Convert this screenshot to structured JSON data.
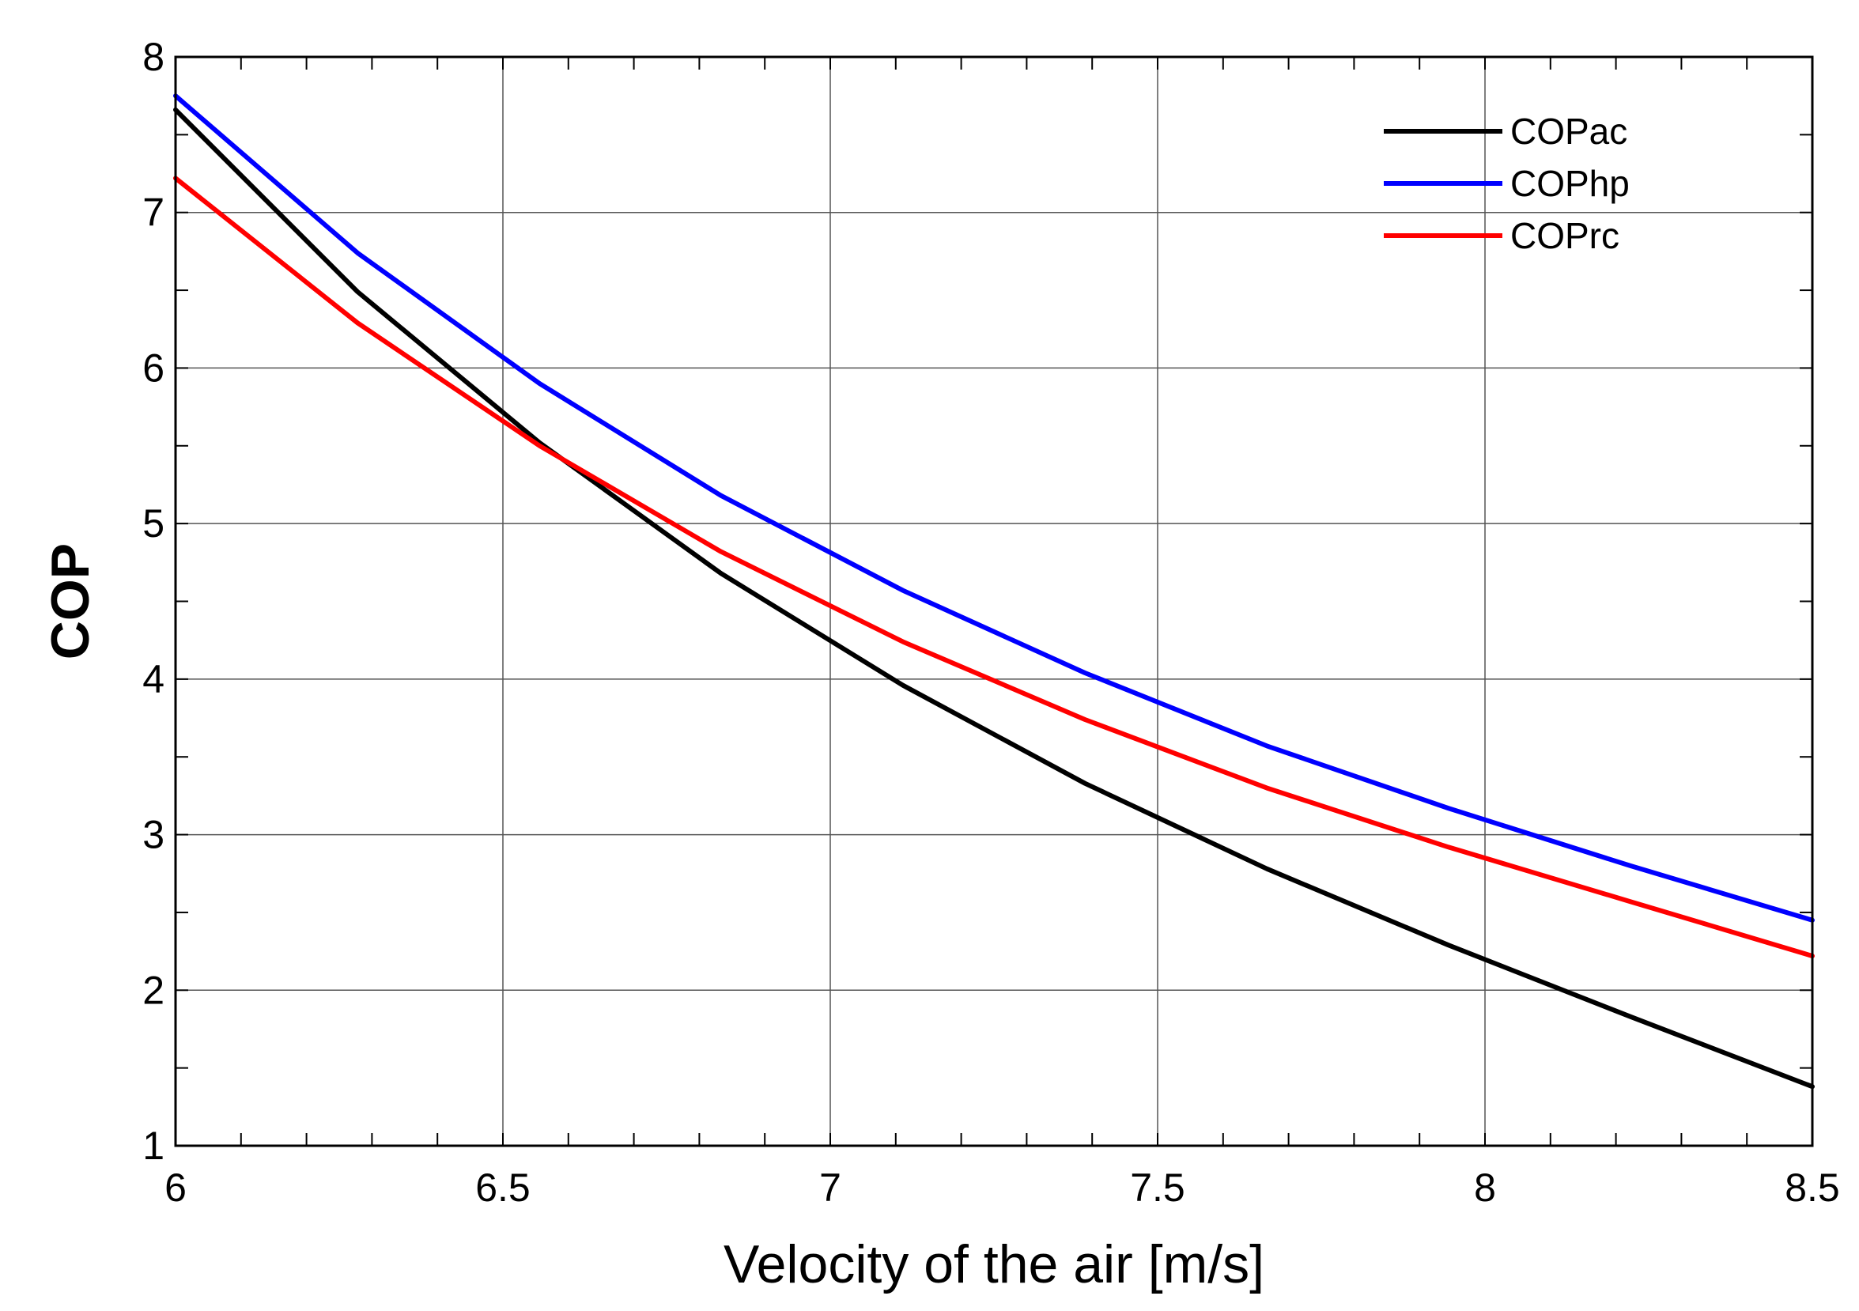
{
  "chart_data": {
    "type": "line",
    "title": "",
    "xlabel": "Velocity of the air [m/s]",
    "ylabel": "COP",
    "xlim": [
      6,
      8.5
    ],
    "ylim": [
      1,
      8
    ],
    "grid": true,
    "legend_position": "top-right",
    "x_ticks": [
      {
        "value": 6,
        "label": "6"
      },
      {
        "value": 6.5,
        "label": "6.5"
      },
      {
        "value": 7,
        "label": "7"
      },
      {
        "value": 7.5,
        "label": "7.5"
      },
      {
        "value": 8,
        "label": "8"
      },
      {
        "value": 8.5,
        "label": "8.5"
      }
    ],
    "y_ticks": [
      {
        "value": 1,
        "label": "1"
      },
      {
        "value": 2,
        "label": "2"
      },
      {
        "value": 3,
        "label": "3"
      },
      {
        "value": 4,
        "label": "4"
      },
      {
        "value": 5,
        "label": "5"
      },
      {
        "value": 6,
        "label": "6"
      },
      {
        "value": 7,
        "label": "7"
      },
      {
        "value": 8,
        "label": "8"
      }
    ],
    "x": [
      6.0,
      6.278,
      6.556,
      6.833,
      7.111,
      7.389,
      7.667,
      7.944,
      8.222,
      8.5
    ],
    "series": [
      {
        "name": "COPac",
        "color": "#000000",
        "values": [
          7.66,
          6.49,
          5.52,
          4.68,
          3.96,
          3.33,
          2.78,
          2.29,
          1.83,
          1.38
        ]
      },
      {
        "name": "COPhp",
        "color": "#0000ff",
        "values": [
          7.75,
          6.74,
          5.9,
          5.18,
          4.57,
          4.04,
          3.57,
          3.17,
          2.8,
          2.45
        ]
      },
      {
        "name": "COPrc",
        "color": "#ff0000",
        "values": [
          7.22,
          6.29,
          5.5,
          4.82,
          4.24,
          3.74,
          3.3,
          2.92,
          2.57,
          2.22
        ]
      }
    ]
  }
}
